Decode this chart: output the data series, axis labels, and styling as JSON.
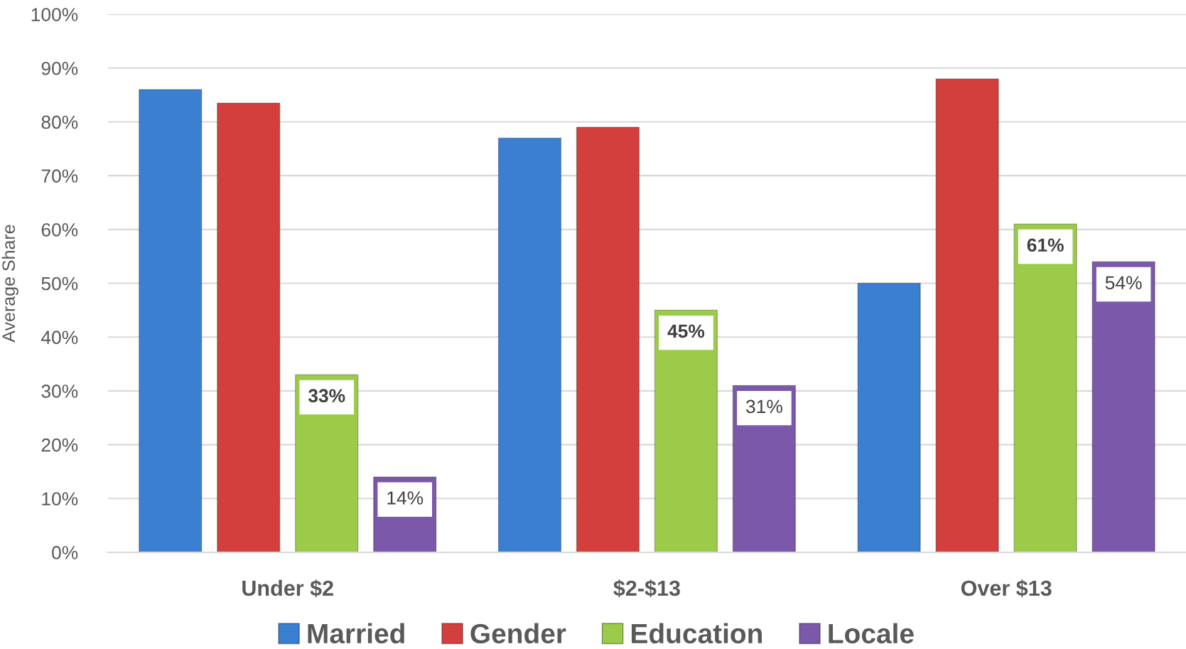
{
  "chart_data": {
    "type": "bar",
    "ylabel": "Average Share",
    "categories": [
      "Under $2",
      "$2-$13",
      "Over $13"
    ],
    "series": [
      {
        "name": "Married",
        "color": "#3b7fd0",
        "values": [
          86,
          77,
          50
        ]
      },
      {
        "name": "Gender",
        "color": "#d23f3c",
        "values": [
          83.5,
          79,
          88
        ]
      },
      {
        "name": "Education",
        "color": "#9ccb4a",
        "values": [
          33,
          45,
          61
        ],
        "value_labels": [
          "33%",
          "45%",
          "61%"
        ]
      },
      {
        "name": "Locale",
        "color": "#7b58a9",
        "values": [
          14,
          31,
          54
        ],
        "value_labels": [
          "14%",
          "31%",
          "54%"
        ]
      }
    ],
    "ylim": [
      0,
      100
    ],
    "yticks": [
      {
        "value": 0,
        "label": "0%"
      },
      {
        "value": 10,
        "label": "10%"
      },
      {
        "value": 20,
        "label": "20%"
      },
      {
        "value": 30,
        "label": "30%"
      },
      {
        "value": 40,
        "label": "40%"
      },
      {
        "value": 50,
        "label": "50%"
      },
      {
        "value": 60,
        "label": "60%"
      },
      {
        "value": 70,
        "label": "70%"
      },
      {
        "value": 80,
        "label": "80%"
      },
      {
        "value": 90,
        "label": "90%"
      },
      {
        "value": 100,
        "label": "100%"
      }
    ],
    "grid": "y",
    "legend": "bottom"
  }
}
